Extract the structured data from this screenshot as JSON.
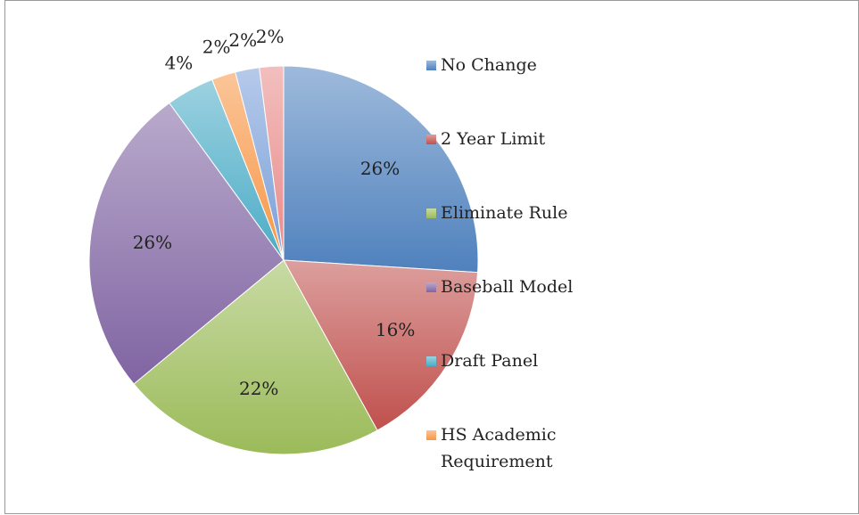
{
  "chart_data": {
    "type": "pie",
    "categories": [
      "No Change",
      "2 Year Limit",
      "Eliminate Rule",
      "Baseball Model",
      "Draft Panel",
      "HS Academic Requirement",
      null,
      null
    ],
    "values": [
      26,
      16,
      22,
      26,
      4,
      2,
      2,
      2
    ],
    "value_labels": [
      "26%",
      "16%",
      "22%",
      "26%",
      "4%",
      "2%",
      "2%",
      "2%"
    ],
    "colors": [
      "#4f81bd",
      "#c0504d",
      "#9bbb59",
      "#8064a2",
      "#4bacc6",
      "#f79646",
      "#7a9fd8",
      "#e88a88"
    ],
    "legend": "right"
  }
}
